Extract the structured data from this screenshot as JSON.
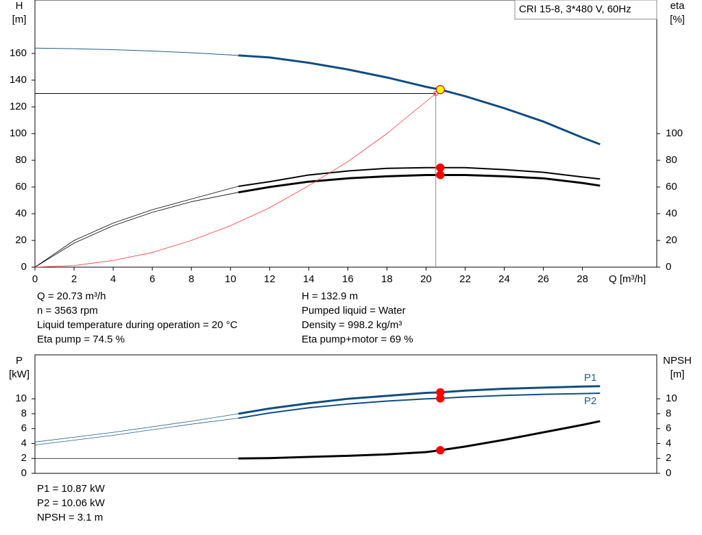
{
  "chart_data": [
    {
      "type": "line",
      "title": "CRI 15-8, 3*480 V, 60Hz",
      "x_label": "Q [m³/h]",
      "y_label": [
        "H",
        "[m]"
      ],
      "y2_label": [
        "eta",
        "[%]"
      ],
      "xlim": [
        0,
        31.8
      ],
      "xticks": [
        0,
        2,
        4,
        6,
        8,
        10,
        12,
        14,
        16,
        18,
        20,
        22,
        24,
        26,
        28
      ],
      "ylim": [
        0,
        200
      ],
      "yticks": [
        0,
        20,
        40,
        60,
        80,
        100,
        120,
        140,
        160
      ],
      "y2lim": [
        0,
        200
      ],
      "y2ticks": [
        0,
        20,
        40,
        60,
        80,
        100
      ],
      "grid": false,
      "series": [
        {
          "color": "#1f5a8c",
          "width": 1,
          "x": [
            0,
            2,
            4,
            6,
            8,
            10.4
          ],
          "values": [
            164,
            163.5,
            162.8,
            161.8,
            160.5,
            158.5
          ]
        },
        {
          "color": "#0f4c81",
          "width": 3,
          "x": [
            10.4,
            12,
            14,
            16,
            18,
            20,
            20.73,
            22,
            24,
            26,
            28,
            28.9
          ],
          "values": [
            158.5,
            157,
            153,
            148,
            142,
            135,
            132.9,
            128,
            119,
            109,
            97,
            92
          ]
        },
        {
          "color": "#000000",
          "width": 0.8,
          "axis": "y2",
          "x": [
            0,
            2,
            4,
            6,
            8,
            10.4
          ],
          "values": [
            0,
            20,
            33,
            43,
            51,
            60.5
          ]
        },
        {
          "color": "#000000",
          "width": 2,
          "axis": "y2",
          "x": [
            10.4,
            12,
            14,
            16,
            18,
            20,
            20.73,
            22,
            24,
            26,
            28,
            28.9
          ],
          "values": [
            60.5,
            64,
            69,
            72,
            74,
            74.5,
            74.5,
            74.5,
            73,
            71,
            67.5,
            66
          ]
        },
        {
          "color": "#000000",
          "width": 0.8,
          "axis": "y2",
          "x": [
            0,
            2,
            4,
            6,
            8,
            10.4
          ],
          "values": [
            0,
            18,
            31,
            41,
            49,
            56
          ]
        },
        {
          "color": "#000000",
          "width": 3,
          "axis": "y2",
          "x": [
            10.4,
            12,
            14,
            16,
            18,
            20,
            20.73,
            22,
            24,
            26,
            28,
            28.9
          ],
          "values": [
            56,
            60,
            64,
            66.5,
            68,
            69,
            69,
            69,
            68,
            66.5,
            63,
            61
          ]
        },
        {
          "color": "#ff3030",
          "width": 0.8,
          "x": [
            0,
            2,
            4,
            6,
            8,
            10,
            12,
            14,
            16,
            18,
            20.5
          ],
          "values": [
            0,
            1.2,
            5,
            11,
            20,
            31,
            44.5,
            61,
            79,
            100,
            130
          ]
        },
        {
          "color": "#000000",
          "width": 1,
          "x": [
            0,
            20.5
          ],
          "values": [
            130,
            130
          ]
        },
        {
          "color": "#888888",
          "width": 1,
          "x": [
            20.5,
            20.5
          ],
          "values": [
            130,
            0
          ]
        }
      ],
      "markers": [
        {
          "x": 20.5,
          "y": 130,
          "color": "#ff3030",
          "fill": "none",
          "size": 3
        },
        {
          "x": 20.73,
          "y": 132.9,
          "color": "#dd0000",
          "fill": "#ffff00",
          "size": 6
        },
        {
          "x": 20.73,
          "y": 74.5,
          "color": "#ff0000",
          "fill": "#ff0000",
          "size": 5.5
        },
        {
          "x": 20.73,
          "y": 69,
          "color": "#ff0000",
          "fill": "#ff0000",
          "size": 5.5
        }
      ],
      "info_left": [
        "Q = 20.73 m³/h",
        "n = 3563 rpm",
        "Liquid temperature during operation = 20 °C",
        "Eta pump = 74.5 %"
      ],
      "info_right": [
        "H = 132.9 m",
        "Pumped liquid = Water",
        "Density = 998.2 kg/m³",
        "Eta pump+motor = 69 %"
      ]
    },
    {
      "type": "line",
      "y_label": [
        "P",
        "[kW]"
      ],
      "y2_label": [
        "NPSH",
        "[m]"
      ],
      "xlim": [
        0,
        31.8
      ],
      "ylim": [
        0,
        15.9
      ],
      "yticks": [
        0,
        2,
        4,
        6,
        8,
        10
      ],
      "y2lim": [
        0,
        15.9
      ],
      "y2ticks": [
        0,
        2,
        4,
        6,
        8,
        10
      ],
      "grid": false,
      "series": [
        {
          "color": "#1f5a8c",
          "width": 0.8,
          "x": [
            0,
            4,
            8,
            10.4
          ],
          "values": [
            4.2,
            5.5,
            7,
            8
          ]
        },
        {
          "color": "#0f4c81",
          "width": 3,
          "x": [
            10.4,
            12,
            14,
            16,
            18,
            20,
            20.73,
            22,
            24,
            26,
            28,
            28.9
          ],
          "values": [
            8,
            8.7,
            9.4,
            10,
            10.4,
            10.8,
            10.87,
            11.1,
            11.35,
            11.5,
            11.65,
            11.7
          ]
        },
        {
          "color": "#1f5a8c",
          "width": 0.8,
          "x": [
            0,
            4,
            8,
            10.4
          ],
          "values": [
            3.8,
            5.1,
            6.6,
            7.4
          ]
        },
        {
          "color": "#0f4c81",
          "width": 2,
          "x": [
            10.4,
            12,
            14,
            16,
            18,
            20,
            20.73,
            22,
            24,
            26,
            28,
            28.9
          ],
          "values": [
            7.4,
            8.1,
            8.8,
            9.3,
            9.7,
            10,
            10.06,
            10.25,
            10.45,
            10.6,
            10.7,
            10.75
          ]
        },
        {
          "color": "#000000",
          "width": 0.8,
          "axis": "y2",
          "x": [
            0,
            10.4
          ],
          "values": [
            2,
            2
          ]
        },
        {
          "color": "#000000",
          "width": 3,
          "axis": "y2",
          "x": [
            10.4,
            12,
            14,
            16,
            18,
            20,
            20.73,
            22,
            24,
            26,
            28,
            28.9
          ],
          "values": [
            2,
            2.05,
            2.2,
            2.35,
            2.55,
            2.85,
            3.1,
            3.6,
            4.5,
            5.5,
            6.5,
            7
          ]
        }
      ],
      "markers": [
        {
          "x": 20.73,
          "y": 10.87,
          "color": "#ff0000",
          "fill": "#ff0000",
          "size": 5.5
        },
        {
          "x": 20.73,
          "y": 10.06,
          "color": "#ff0000",
          "fill": "#ff0000",
          "size": 5.5
        },
        {
          "x": 20.73,
          "y": 3.1,
          "color": "#ff0000",
          "fill": "#ff0000",
          "size": 5.5
        }
      ],
      "annotations": [
        "P1",
        "P2"
      ],
      "info_left": [
        "P1 = 10.87 kW",
        "P2 = 10.06 kW",
        "NPSH = 3.1 m"
      ]
    }
  ]
}
